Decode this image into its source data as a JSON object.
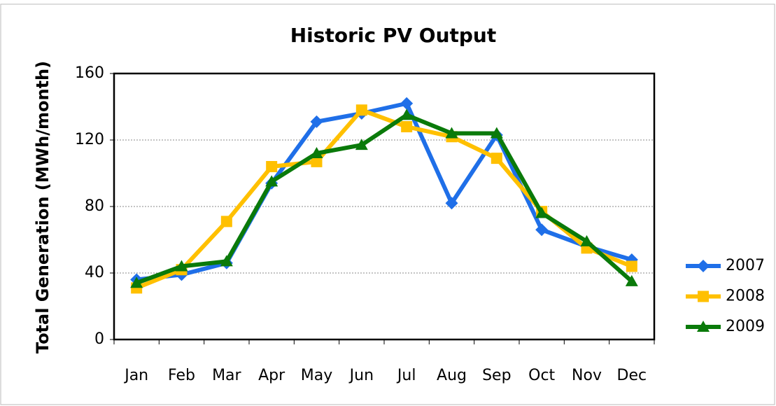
{
  "chart_data": {
    "type": "line",
    "title": "Historic PV Output",
    "y_label": "Total Generation (MWh/month)",
    "categories": [
      "Jan",
      "Feb",
      "Mar",
      "Apr",
      "May",
      "Jun",
      "Jul",
      "Aug",
      "Sep",
      "Oct",
      "Nov",
      "Dec"
    ],
    "series": [
      {
        "name": "2007",
        "color": "#1f6fe8",
        "marker": "diamond",
        "values": [
          36,
          39,
          46,
          94,
          131,
          136,
          142,
          82,
          123,
          66,
          56,
          48
        ]
      },
      {
        "name": "2008",
        "color": "#ffc000",
        "marker": "square",
        "values": [
          31,
          42,
          71,
          104,
          107,
          138,
          128,
          122,
          109,
          77,
          55,
          44
        ]
      },
      {
        "name": "2009",
        "color": "#0a7a0a",
        "marker": "triangle",
        "values": [
          34,
          44,
          47,
          95,
          112,
          117,
          135,
          124,
          124,
          76,
          59,
          35
        ]
      }
    ],
    "ylim": [
      0,
      160
    ],
    "yticks": [
      0,
      40,
      80,
      120,
      160
    ],
    "grid": true,
    "legend": "right"
  }
}
